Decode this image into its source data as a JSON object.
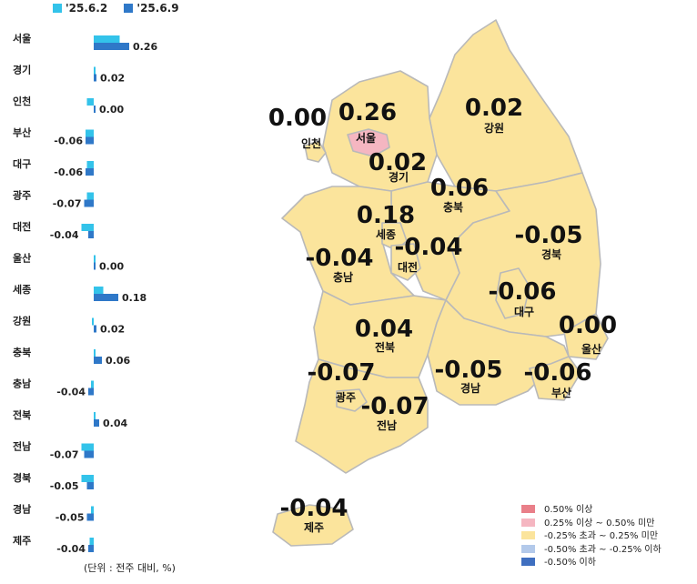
{
  "legend": {
    "series": [
      {
        "label": "'25.6.2",
        "color": "#33c3ea"
      },
      {
        "label": "'25.6.9",
        "color": "#2f78c8"
      }
    ]
  },
  "chart_data": {
    "type": "bar",
    "orientation": "horizontal",
    "categories": [
      "서울",
      "경기",
      "인천",
      "부산",
      "대구",
      "광주",
      "대전",
      "울산",
      "세종",
      "강원",
      "충북",
      "충남",
      "전북",
      "전남",
      "경북",
      "경남",
      "제주"
    ],
    "series": [
      {
        "name": "'25.6.2",
        "values": [
          0.19,
          0.0,
          -0.05,
          -0.06,
          -0.05,
          -0.05,
          -0.09,
          0.0,
          0.07,
          -0.01,
          0.0,
          -0.02,
          0.0,
          -0.09,
          -0.09,
          -0.02,
          -0.03
        ]
      },
      {
        "name": "'25.6.9",
        "values": [
          0.26,
          0.02,
          0.0,
          -0.06,
          -0.06,
          -0.07,
          -0.04,
          0.0,
          0.18,
          0.02,
          0.06,
          -0.04,
          0.04,
          -0.07,
          -0.05,
          -0.05,
          -0.04
        ]
      }
    ],
    "data_labels": [
      "0.26",
      "0.02",
      "0.00",
      "-0.06",
      "-0.06",
      "-0.07",
      "-0.04",
      "0.00",
      "0.18",
      "0.02",
      "0.06",
      "-0.04",
      "0.04",
      "-0.07",
      "-0.05",
      "-0.05",
      "-0.04"
    ],
    "unit_note": "(단위 : 전주 대비, %)"
  },
  "map": {
    "regions": [
      {
        "id": "seoul",
        "name": "서울",
        "value": "0.26",
        "fill": "#f5b6c1"
      },
      {
        "id": "incheon",
        "name": "인천",
        "value": "0.00",
        "fill": "#fbe49c"
      },
      {
        "id": "gyeonggi",
        "name": "경기",
        "value": "0.02",
        "fill": "#fbe49c"
      },
      {
        "id": "gangwon",
        "name": "강원",
        "value": "0.02",
        "fill": "#fbe49c"
      },
      {
        "id": "chungbuk",
        "name": "충북",
        "value": "0.06",
        "fill": "#fbe49c"
      },
      {
        "id": "sejong",
        "name": "세종",
        "value": "0.18",
        "fill": "#fbe49c"
      },
      {
        "id": "daejeon",
        "name": "대전",
        "value": "-0.04",
        "fill": "#fbe49c"
      },
      {
        "id": "chungnam",
        "name": "충남",
        "value": "-0.04",
        "fill": "#fbe49c"
      },
      {
        "id": "gyeongbuk",
        "name": "경북",
        "value": "-0.05",
        "fill": "#fbe49c"
      },
      {
        "id": "daegu",
        "name": "대구",
        "value": "-0.06",
        "fill": "#fbe49c"
      },
      {
        "id": "jeonbuk",
        "name": "전북",
        "value": "0.04",
        "fill": "#fbe49c"
      },
      {
        "id": "ulsan",
        "name": "울산",
        "value": "0.00",
        "fill": "#fbe49c"
      },
      {
        "id": "gwangju",
        "name": "광주",
        "value": "-0.07",
        "fill": "#fbe49c"
      },
      {
        "id": "gyeongnam",
        "name": "경남",
        "value": "-0.05",
        "fill": "#fbe49c"
      },
      {
        "id": "busan",
        "name": "부산",
        "value": "-0.06",
        "fill": "#fbe49c"
      },
      {
        "id": "jeonnam",
        "name": "전남",
        "value": "-0.07",
        "fill": "#fbe49c"
      },
      {
        "id": "jeju",
        "name": "제주",
        "value": "-0.04",
        "fill": "#fbe49c"
      }
    ],
    "legend": [
      {
        "label": "0.50% 이상",
        "color": "#e97f89"
      },
      {
        "label": "0.25% 이상 ~ 0.50% 미만",
        "color": "#f5b6c1"
      },
      {
        "label": "-0.25% 초과 ~ 0.25% 미만",
        "color": "#fbe49c"
      },
      {
        "label": "-0.50% 초과 ~ -0.25% 이하",
        "color": "#b3c9ea"
      },
      {
        "label": "-0.50% 이하",
        "color": "#3f6fc0"
      }
    ]
  }
}
